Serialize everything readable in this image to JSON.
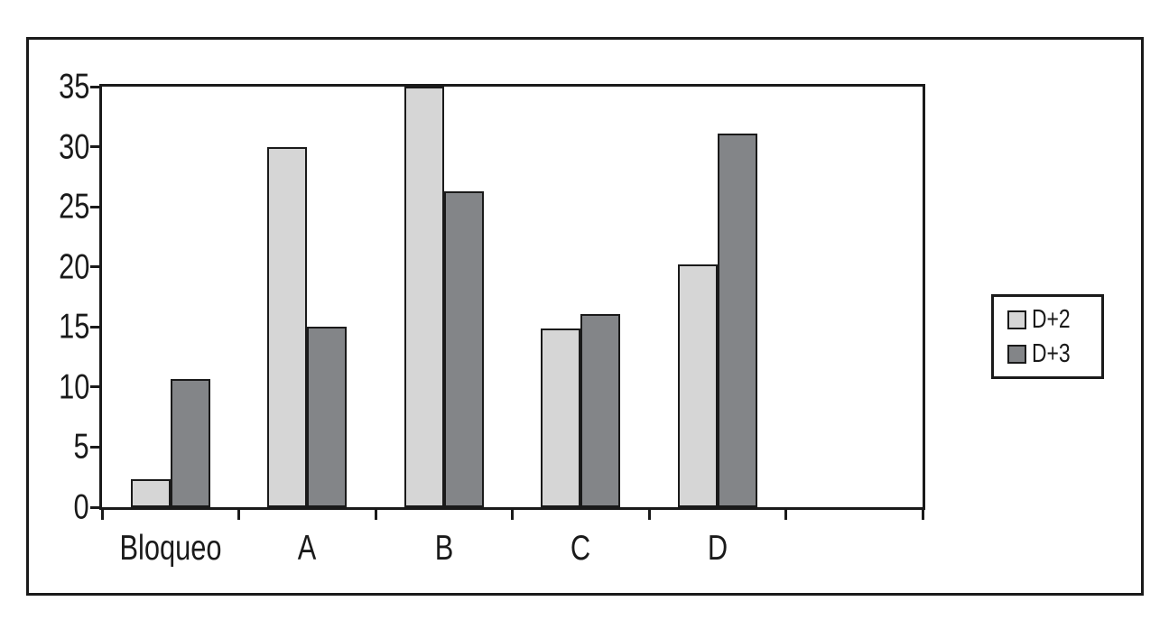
{
  "chart_data": {
    "type": "bar",
    "title": "",
    "xlabel": "",
    "ylabel": "",
    "categories": [
      "Bloqueo",
      "A",
      "B",
      "C",
      "D",
      ""
    ],
    "series": [
      {
        "name": "D+2",
        "color": "#d6d6d6",
        "values": [
          2.3,
          30,
          35,
          14.9,
          20.2,
          null
        ]
      },
      {
        "name": "D+3",
        "color": "#838588",
        "values": [
          10.7,
          15,
          26.3,
          16.1,
          31.1,
          null
        ]
      }
    ],
    "ylim": [
      0,
      35
    ],
    "yticks": [
      0,
      5,
      10,
      15,
      20,
      25,
      30,
      35
    ],
    "grid": false,
    "legend_position": "right",
    "outline_color": "#1a1a1a"
  },
  "legend": {
    "items": [
      {
        "label": "D+2",
        "color": "#d6d6d6"
      },
      {
        "label": "D+3",
        "color": "#838588"
      }
    ]
  }
}
